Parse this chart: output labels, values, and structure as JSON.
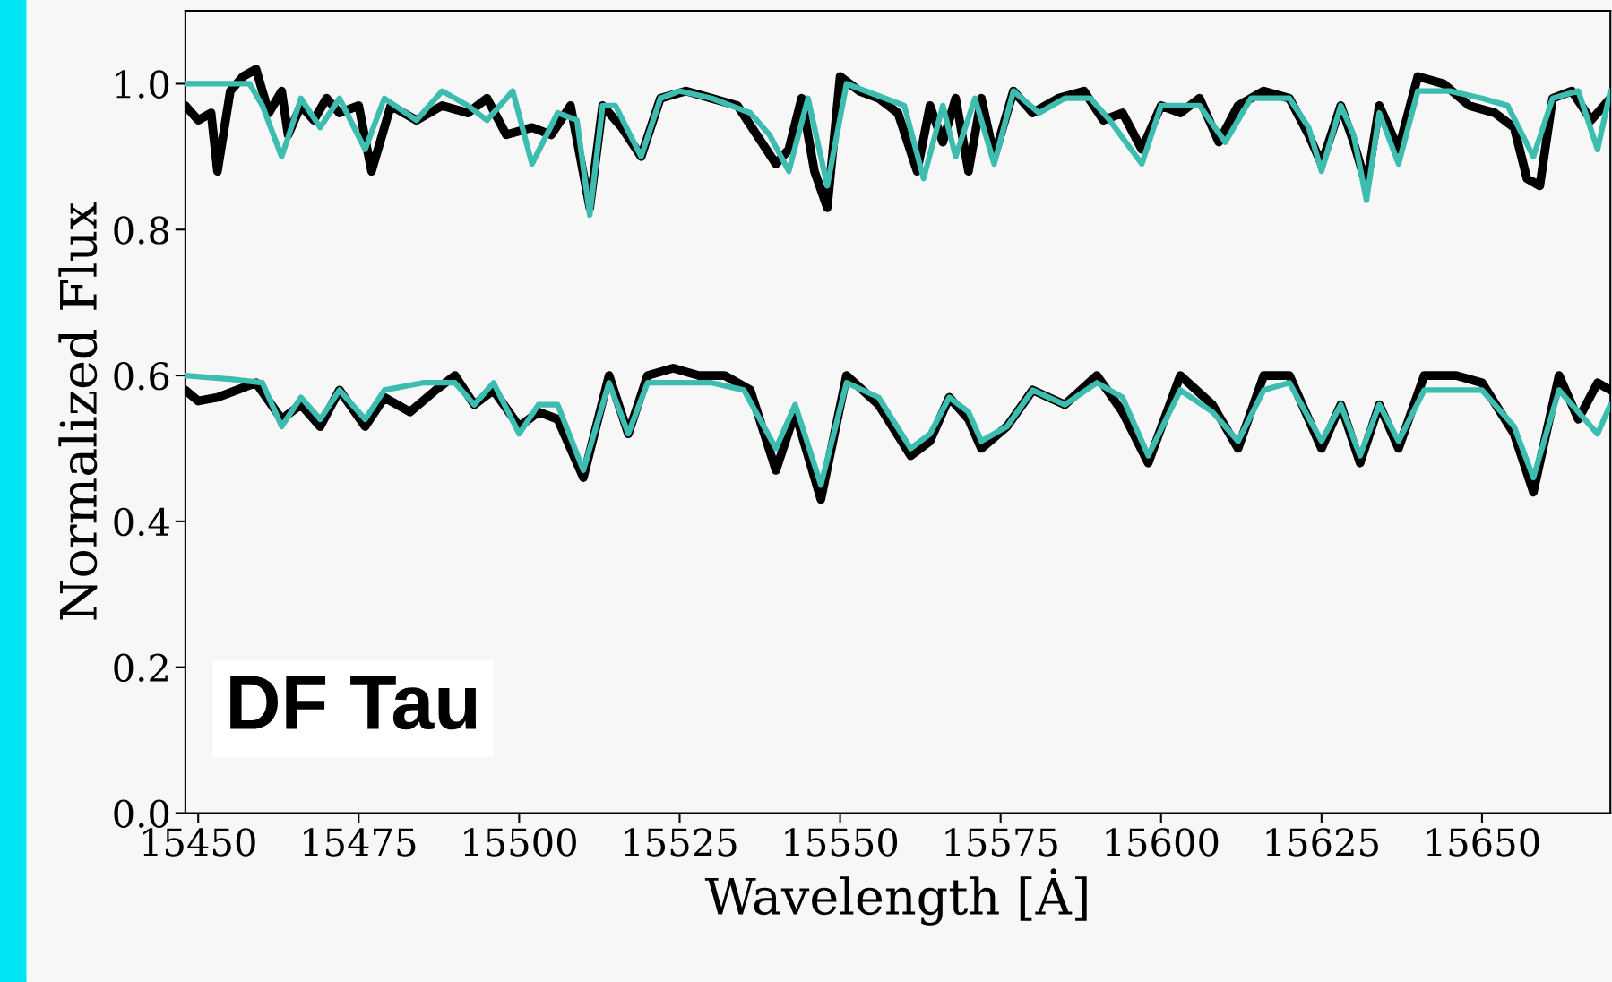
{
  "chart_data": {
    "type": "line",
    "xlabel": "Wavelength [Ȧ]",
    "ylabel": "Normalized Flux",
    "xlim": [
      15448,
      15670
    ],
    "ylim": [
      0,
      1.1
    ],
    "xticks": [
      15450,
      15475,
      15500,
      15525,
      15550,
      15575,
      15600,
      15625,
      15650
    ],
    "yticks": [
      {
        "value": 0,
        "label": "0.0"
      },
      {
        "value": 0.2,
        "label": "0.2"
      },
      {
        "value": 0.4,
        "label": "0.4"
      },
      {
        "value": 0.6,
        "label": "0.6"
      },
      {
        "value": 0.8,
        "label": "0.8"
      },
      {
        "value": 1.0,
        "label": "1.0"
      }
    ],
    "grid": false,
    "legend": false,
    "marker": "none",
    "line_style": "solid",
    "annotations": [
      "DF Tau"
    ],
    "series": [
      {
        "color": "#000000",
        "x": [
          15448,
          15450,
          15452,
          15453,
          15455,
          15457,
          15459,
          15461,
          15463,
          15464,
          15466,
          15468,
          15470,
          15472,
          15475,
          15477,
          15480,
          15484,
          15488,
          15492,
          15495,
          15498,
          15502,
          15505,
          15508,
          15511,
          15513,
          15516,
          15519,
          15522,
          15526,
          15530,
          15534,
          15537,
          15540,
          15542,
          15544,
          15546,
          15548,
          15550,
          15553,
          15556,
          15559,
          15562,
          15564,
          15566,
          15568,
          15570,
          15572,
          15574,
          15577,
          15580,
          15584,
          15588,
          15591,
          15594,
          15597,
          15600,
          15603,
          15606,
          15609,
          15612,
          15616,
          15620,
          15623,
          15625,
          15628,
          15630,
          15632,
          15634,
          15637,
          15640,
          15644,
          15648,
          15652,
          15655,
          15657,
          15659,
          15661,
          15664,
          15667,
          15670
        ],
        "values": [
          0.97,
          0.95,
          0.96,
          0.88,
          0.99,
          1.01,
          1.02,
          0.96,
          0.99,
          0.93,
          0.97,
          0.95,
          0.98,
          0.96,
          0.97,
          0.88,
          0.97,
          0.95,
          0.97,
          0.96,
          0.98,
          0.93,
          0.94,
          0.93,
          0.97,
          0.83,
          0.97,
          0.94,
          0.9,
          0.98,
          0.99,
          0.98,
          0.97,
          0.93,
          0.89,
          0.91,
          0.98,
          0.88,
          0.83,
          1.01,
          0.99,
          0.98,
          0.96,
          0.88,
          0.97,
          0.92,
          0.98,
          0.88,
          0.98,
          0.9,
          0.99,
          0.96,
          0.98,
          0.99,
          0.95,
          0.96,
          0.91,
          0.97,
          0.96,
          0.98,
          0.92,
          0.97,
          0.99,
          0.98,
          0.93,
          0.89,
          0.97,
          0.92,
          0.86,
          0.97,
          0.91,
          1.01,
          1.0,
          0.97,
          0.96,
          0.94,
          0.87,
          0.86,
          0.98,
          0.99,
          0.95,
          0.98
        ]
      },
      {
        "color": "#3dbdb0",
        "x": [
          15448,
          15452,
          15458,
          15460,
          15463,
          15466,
          15469,
          15472,
          15476,
          15479,
          15484,
          15488,
          15492,
          15495,
          15499,
          15502,
          15506,
          15509,
          15511,
          15513,
          15515,
          15519,
          15522,
          15525,
          15530,
          15533,
          15536,
          15539,
          15542,
          15545,
          15548,
          15551,
          15557,
          15560,
          15563,
          15566,
          15568,
          15571,
          15574,
          15577,
          15581,
          15585,
          15589,
          15592,
          15597,
          15600,
          15606,
          15610,
          15614,
          15620,
          15623,
          15625,
          15628,
          15630,
          15632,
          15634,
          15637,
          15640,
          15645,
          15650,
          15654,
          15658,
          15661,
          15665,
          15668,
          15670
        ],
        "values": [
          1.0,
          1.0,
          1.0,
          0.97,
          0.9,
          0.98,
          0.94,
          0.98,
          0.91,
          0.98,
          0.95,
          0.99,
          0.97,
          0.95,
          0.99,
          0.89,
          0.96,
          0.95,
          0.82,
          0.97,
          0.97,
          0.9,
          0.98,
          0.99,
          0.98,
          0.97,
          0.96,
          0.93,
          0.88,
          0.98,
          0.86,
          1.0,
          0.98,
          0.97,
          0.87,
          0.97,
          0.9,
          0.98,
          0.89,
          0.99,
          0.96,
          0.98,
          0.98,
          0.95,
          0.89,
          0.97,
          0.97,
          0.92,
          0.98,
          0.98,
          0.94,
          0.88,
          0.97,
          0.93,
          0.84,
          0.96,
          0.89,
          0.99,
          0.99,
          0.98,
          0.97,
          0.9,
          0.98,
          0.99,
          0.91,
          0.99
        ]
      },
      {
        "color": "#000000",
        "x": [
          15448,
          15450,
          15453,
          15456,
          15459,
          15463,
          15466,
          15469,
          15472,
          15476,
          15479,
          15483,
          15487,
          15490,
          15493,
          15496,
          15500,
          15503,
          15506,
          15510,
          15514,
          15517,
          15520,
          15524,
          15528,
          15532,
          15536,
          15540,
          15543,
          15547,
          15551,
          15556,
          15561,
          15564,
          15567,
          15570,
          15572,
          15576,
          15580,
          15585,
          15590,
          15594,
          15598,
          15603,
          15608,
          15612,
          15616,
          15620,
          15625,
          15628,
          15631,
          15634,
          15637,
          15641,
          15646,
          15650,
          15655,
          15658,
          15662,
          15665,
          15668,
          15670
        ],
        "values": [
          0.58,
          0.565,
          0.57,
          0.58,
          0.59,
          0.54,
          0.56,
          0.53,
          0.58,
          0.53,
          0.57,
          0.55,
          0.58,
          0.6,
          0.56,
          0.58,
          0.53,
          0.55,
          0.54,
          0.46,
          0.6,
          0.52,
          0.6,
          0.61,
          0.6,
          0.6,
          0.58,
          0.47,
          0.55,
          0.43,
          0.6,
          0.56,
          0.49,
          0.51,
          0.57,
          0.54,
          0.5,
          0.53,
          0.58,
          0.56,
          0.6,
          0.55,
          0.48,
          0.6,
          0.56,
          0.5,
          0.6,
          0.6,
          0.5,
          0.56,
          0.48,
          0.56,
          0.5,
          0.6,
          0.6,
          0.59,
          0.52,
          0.44,
          0.6,
          0.54,
          0.59,
          0.58
        ]
      },
      {
        "color": "#3dbdb0",
        "x": [
          15448,
          15455,
          15460,
          15463,
          15466,
          15469,
          15472,
          15476,
          15479,
          15485,
          15490,
          15493,
          15496,
          15500,
          15503,
          15506,
          15510,
          15514,
          15517,
          15520,
          15525,
          15530,
          15535,
          15540,
          15543,
          15547,
          15551,
          15556,
          15561,
          15564,
          15567,
          15570,
          15572,
          15576,
          15580,
          15585,
          15590,
          15594,
          15598,
          15603,
          15608,
          15612,
          15616,
          15620,
          15625,
          15628,
          15631,
          15634,
          15637,
          15641,
          15650,
          15655,
          15658,
          15662,
          15665,
          15668,
          15670
        ],
        "values": [
          0.6,
          0.595,
          0.59,
          0.53,
          0.57,
          0.54,
          0.58,
          0.54,
          0.58,
          0.59,
          0.59,
          0.56,
          0.59,
          0.52,
          0.56,
          0.56,
          0.47,
          0.59,
          0.52,
          0.59,
          0.59,
          0.59,
          0.58,
          0.5,
          0.56,
          0.45,
          0.59,
          0.57,
          0.5,
          0.52,
          0.57,
          0.55,
          0.51,
          0.53,
          0.58,
          0.56,
          0.59,
          0.57,
          0.49,
          0.58,
          0.55,
          0.51,
          0.58,
          0.59,
          0.51,
          0.56,
          0.49,
          0.56,
          0.51,
          0.58,
          0.58,
          0.53,
          0.46,
          0.58,
          0.55,
          0.52,
          0.56
        ]
      }
    ]
  }
}
